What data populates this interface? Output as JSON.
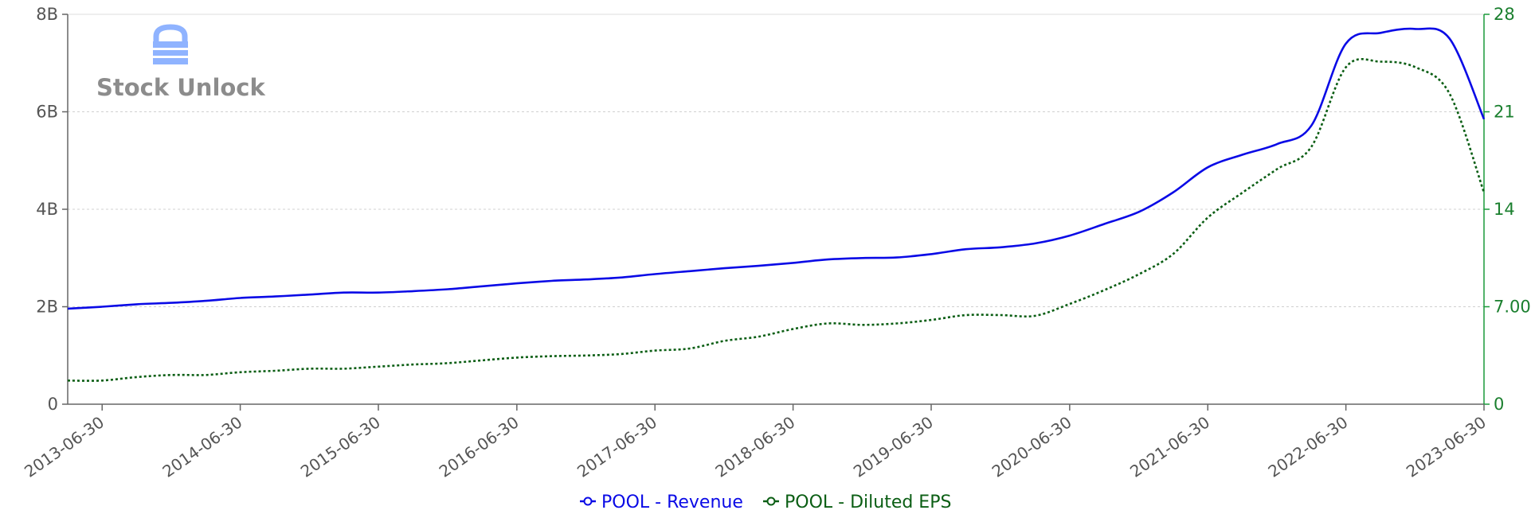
{
  "watermark": {
    "text": "Stock Unlock",
    "icon": "lock-icon"
  },
  "colors": {
    "revenue": "#0a0ae6",
    "eps": "#0b5e14",
    "right_axis": "#1a9a3a",
    "left_axis": "#555555",
    "grid": "#d0d0d0",
    "watermark_icon": "#8fb3ff"
  },
  "legend": [
    {
      "label": "POOL - Revenue"
    },
    {
      "label": "POOL - Diluted EPS"
    }
  ],
  "chart_data": {
    "type": "line",
    "grid": true,
    "legend_position": "bottom-center",
    "x_ticks": [
      "2013-06-30",
      "2014-06-30",
      "2015-06-30",
      "2016-06-30",
      "2017-06-30",
      "2018-06-30",
      "2019-06-30",
      "2020-06-30",
      "2021-06-30",
      "2022-06-30",
      "2023-06-30"
    ],
    "x_range": [
      "2013-03-31",
      "2023-06-30"
    ],
    "y_left": {
      "ticks": [
        "0",
        "2B",
        "4B",
        "6B",
        "8B"
      ],
      "values": [
        0,
        2,
        4,
        6,
        8
      ],
      "range": [
        0,
        8
      ],
      "unit": "B"
    },
    "y_right": {
      "ticks": [
        "0",
        "7.00",
        "14",
        "21",
        "28"
      ],
      "values": [
        0,
        7,
        14,
        21,
        28
      ],
      "range": [
        0,
        28
      ]
    },
    "series": [
      {
        "name": "POOL - Revenue",
        "axis": "left",
        "style": "solid",
        "x": [
          "2013-03-31",
          "2013-06-30",
          "2013-09-30",
          "2013-12-31",
          "2014-03-31",
          "2014-06-30",
          "2014-09-30",
          "2014-12-31",
          "2015-03-31",
          "2015-06-30",
          "2015-09-30",
          "2015-12-31",
          "2016-03-31",
          "2016-06-30",
          "2016-09-30",
          "2016-12-31",
          "2017-03-31",
          "2017-06-30",
          "2017-09-30",
          "2017-12-31",
          "2018-03-31",
          "2018-06-30",
          "2018-09-30",
          "2018-12-31",
          "2019-03-31",
          "2019-06-30",
          "2019-09-30",
          "2019-12-31",
          "2020-03-31",
          "2020-06-30",
          "2020-09-30",
          "2020-12-31",
          "2021-03-31",
          "2021-06-30",
          "2021-09-30",
          "2021-12-31",
          "2022-03-31",
          "2022-06-30",
          "2022-09-30",
          "2022-12-31",
          "2023-03-31",
          "2023-06-30"
        ],
        "values": [
          1.96,
          2.0,
          2.05,
          2.08,
          2.12,
          2.18,
          2.21,
          2.25,
          2.29,
          2.29,
          2.32,
          2.36,
          2.42,
          2.48,
          2.53,
          2.56,
          2.6,
          2.67,
          2.73,
          2.79,
          2.84,
          2.9,
          2.97,
          3.0,
          3.01,
          3.08,
          3.18,
          3.22,
          3.3,
          3.46,
          3.7,
          3.95,
          4.35,
          4.86,
          5.12,
          5.34,
          5.72,
          7.4,
          7.62,
          7.7,
          7.5,
          5.85
        ]
      },
      {
        "name": "POOL - Diluted EPS",
        "axis": "right",
        "style": "dotted",
        "x": [
          "2013-03-31",
          "2013-06-30",
          "2013-09-30",
          "2013-12-31",
          "2014-03-31",
          "2014-06-30",
          "2014-09-30",
          "2014-12-31",
          "2015-03-31",
          "2015-06-30",
          "2015-09-30",
          "2015-12-31",
          "2016-03-31",
          "2016-06-30",
          "2016-09-30",
          "2016-12-31",
          "2017-03-31",
          "2017-06-30",
          "2017-09-30",
          "2017-12-31",
          "2018-03-31",
          "2018-06-30",
          "2018-09-30",
          "2018-12-31",
          "2019-03-31",
          "2019-06-30",
          "2019-09-30",
          "2019-12-31",
          "2020-03-31",
          "2020-06-30",
          "2020-09-30",
          "2020-12-31",
          "2021-03-31",
          "2021-06-30",
          "2021-09-30",
          "2021-12-31",
          "2022-03-31",
          "2022-06-30",
          "2022-09-30",
          "2022-12-31",
          "2023-03-31",
          "2023-06-30"
        ],
        "values": [
          1.7,
          1.7,
          1.95,
          2.1,
          2.1,
          2.3,
          2.4,
          2.55,
          2.55,
          2.7,
          2.85,
          2.95,
          3.15,
          3.35,
          3.45,
          3.5,
          3.6,
          3.85,
          4.0,
          4.55,
          4.85,
          5.4,
          5.8,
          5.7,
          5.8,
          6.05,
          6.4,
          6.4,
          6.35,
          7.2,
          8.2,
          9.35,
          10.8,
          13.4,
          15.2,
          16.9,
          18.5,
          24.2,
          24.6,
          24.2,
          22.3,
          15.2
        ]
      }
    ]
  }
}
